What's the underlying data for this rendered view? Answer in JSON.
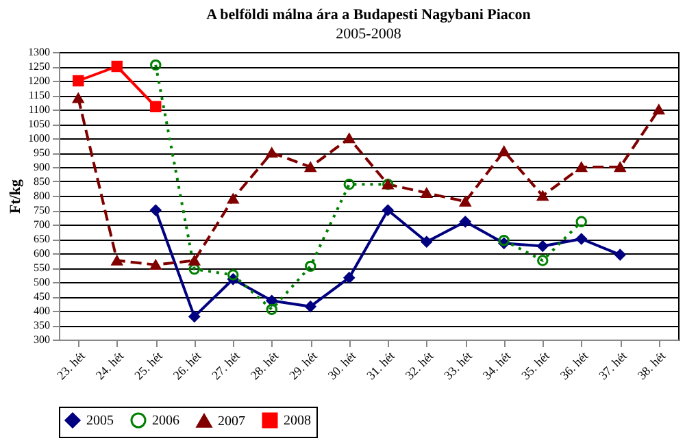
{
  "chart_data": {
    "type": "line",
    "title": "A belföldi málna ára a Budapesti Nagybani Piacon",
    "subtitle": "2005-2008",
    "ylabel": "Ft/kg",
    "categories": [
      "23. hét",
      "24. hét",
      "25. hét",
      "26. hét",
      "27. hét",
      "28. hét",
      "29. hét",
      "30. hét",
      "31. hét",
      "32. hét",
      "33. hét",
      "34. hét",
      "35. hét",
      "36. hét",
      "37. hét",
      "38. hét"
    ],
    "series": [
      {
        "name": "2005",
        "color": "#000080",
        "marker": "diamond",
        "line_style": "solid",
        "values": [
          null,
          null,
          750,
          380,
          510,
          435,
          415,
          515,
          750,
          640,
          710,
          635,
          625,
          650,
          595,
          null
        ]
      },
      {
        "name": "2006",
        "color": "#008000",
        "marker": "circle",
        "line_style": "dotted",
        "values": [
          null,
          null,
          1255,
          545,
          525,
          405,
          555,
          840,
          840,
          null,
          null,
          645,
          575,
          710,
          null,
          null
        ]
      },
      {
        "name": "2007",
        "color": "#800000",
        "marker": "triangle",
        "line_style": "dashed",
        "values": [
          1140,
          575,
          560,
          575,
          790,
          950,
          900,
          1000,
          840,
          810,
          780,
          955,
          800,
          900,
          900,
          1100
        ]
      },
      {
        "name": "2008",
        "color": "#ff0000",
        "marker": "square",
        "line_style": "solid",
        "values": [
          1200,
          1250,
          1110,
          null,
          null,
          null,
          null,
          null,
          null,
          null,
          null,
          null,
          null,
          null,
          null,
          null
        ]
      }
    ],
    "ylim": [
      300,
      1300
    ],
    "yticks": [
      300,
      350,
      400,
      450,
      500,
      550,
      600,
      650,
      700,
      750,
      800,
      850,
      900,
      950,
      1000,
      1050,
      1100,
      1150,
      1200,
      1250,
      1300
    ],
    "grid": "y",
    "legend": "bottom"
  }
}
